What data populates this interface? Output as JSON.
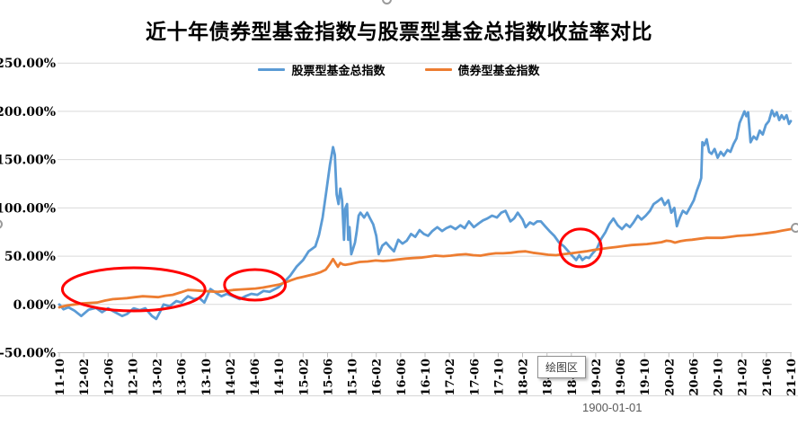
{
  "chart": {
    "title": "近十年债券型基金指数与股票型基金总指数收益率对比",
    "legend": [
      {
        "label": "股票型基金总指数",
        "color": "#5B9BD5"
      },
      {
        "label": "债券型基金指数",
        "color": "#ED7D31"
      }
    ]
  },
  "tooltip": {
    "text": "绘图区"
  },
  "note": {
    "text": "1900-01-01"
  },
  "colors": {
    "stock_line": "#5B9BD5",
    "bond_line": "#ED7D31",
    "annotation": "#FF0000",
    "gridline": "#D9D9D9",
    "axis": "#BFBFBF"
  },
  "chart_data": {
    "type": "line",
    "title": "近十年债券型基金指数与股票型基金总指数收益率对比",
    "xlabel": "",
    "ylabel": "",
    "ylim": [
      -50,
      250
    ],
    "y_step": 50,
    "grid": "horizontal",
    "legend_position": "top",
    "y_tick_labels": [
      "250.00%",
      "200.00%",
      "150.00%",
      "100.00%",
      "50.00%",
      "0.00%",
      "-50.00%"
    ],
    "x_tick_labels": [
      "11-10",
      "12-02",
      "12-06",
      "12-10",
      "13-02",
      "13-06",
      "13-10",
      "14-02",
      "14-06",
      "14-10",
      "15-02",
      "15-06",
      "15-10",
      "16-02",
      "16-06",
      "16-10",
      "17-02",
      "17-06",
      "17-10",
      "18-02",
      "18-06",
      "18-10",
      "19-02",
      "19-06",
      "19-10",
      "20-02",
      "20-06",
      "20-10",
      "21-02",
      "21-06",
      "21-10"
    ],
    "x_unit": "months since 2011-10",
    "series": [
      {
        "id": "stock",
        "name": "股票型基金总指数",
        "color": "#5B9BD5",
        "points": [
          [
            0,
            0
          ],
          [
            0.7,
            -5
          ],
          [
            1.5,
            -3
          ],
          [
            2.5,
            -6.5
          ],
          [
            3.6,
            -12
          ],
          [
            4.8,
            -5.5
          ],
          [
            6,
            -3.5
          ],
          [
            7,
            -8
          ],
          [
            8,
            -4
          ],
          [
            9,
            -7.5
          ],
          [
            10.3,
            -12
          ],
          [
            11.1,
            -10
          ],
          [
            12.2,
            -4
          ],
          [
            13.2,
            -6
          ],
          [
            14.1,
            -4
          ],
          [
            15.2,
            -12
          ],
          [
            15.9,
            -15
          ],
          [
            16.5,
            -8
          ],
          [
            17.1,
            0
          ],
          [
            18.1,
            -2
          ],
          [
            19.2,
            3.5
          ],
          [
            20,
            2
          ],
          [
            21.1,
            8.5
          ],
          [
            22.1,
            5.5
          ],
          [
            23,
            6.5
          ],
          [
            23.8,
            2
          ],
          [
            24.8,
            16
          ],
          [
            25.7,
            12
          ],
          [
            26.6,
            8.5
          ],
          [
            27.5,
            11
          ],
          [
            28.5,
            8.5
          ],
          [
            29.6,
            5.5
          ],
          [
            30.5,
            8.5
          ],
          [
            31.5,
            11
          ],
          [
            32.5,
            10
          ],
          [
            33.5,
            14
          ],
          [
            34.5,
            13
          ],
          [
            36,
            18
          ],
          [
            37,
            24
          ],
          [
            37.9,
            30
          ],
          [
            38.9,
            39
          ],
          [
            40,
            46
          ],
          [
            40.9,
            55
          ],
          [
            42,
            60
          ],
          [
            42.6,
            72
          ],
          [
            43.2,
            90
          ],
          [
            43.8,
            117
          ],
          [
            44.4,
            145
          ],
          [
            44.9,
            163
          ],
          [
            45.2,
            155
          ],
          [
            45.5,
            114
          ],
          [
            45.8,
            104
          ],
          [
            46.1,
            120
          ],
          [
            46.4,
            108
          ],
          [
            46.7,
            67
          ],
          [
            46.9,
            99
          ],
          [
            47.2,
            104
          ],
          [
            47.4,
            67
          ],
          [
            47.6,
            80
          ],
          [
            47.9,
            52
          ],
          [
            48.2,
            58
          ],
          [
            48.5,
            64
          ],
          [
            48.8,
            76
          ],
          [
            49.1,
            92
          ],
          [
            49.4,
            95
          ],
          [
            50,
            90
          ],
          [
            50.5,
            95
          ],
          [
            51,
            89
          ],
          [
            51.5,
            83
          ],
          [
            52,
            71
          ],
          [
            52.4,
            52
          ],
          [
            53,
            61
          ],
          [
            53.6,
            64
          ],
          [
            54.3,
            59
          ],
          [
            54.9,
            55
          ],
          [
            55.6,
            67
          ],
          [
            56.3,
            63
          ],
          [
            57,
            66
          ],
          [
            57.7,
            73
          ],
          [
            58.4,
            70
          ],
          [
            59.1,
            77
          ],
          [
            59.8,
            73
          ],
          [
            60.5,
            71
          ],
          [
            61.2,
            76
          ],
          [
            62,
            80
          ],
          [
            62.8,
            76
          ],
          [
            63.5,
            79
          ],
          [
            64.2,
            81
          ],
          [
            65,
            78
          ],
          [
            65.8,
            82
          ],
          [
            66.5,
            79
          ],
          [
            67.2,
            86
          ],
          [
            68,
            80
          ],
          [
            68.8,
            84
          ],
          [
            69.5,
            87
          ],
          [
            70.2,
            89
          ],
          [
            71,
            92
          ],
          [
            71.8,
            90
          ],
          [
            72.5,
            95
          ],
          [
            73.2,
            97
          ],
          [
            74,
            86
          ],
          [
            74.6,
            89
          ],
          [
            75.2,
            95
          ],
          [
            76,
            88
          ],
          [
            76.5,
            80
          ],
          [
            77.2,
            85
          ],
          [
            77.8,
            83
          ],
          [
            78.4,
            86
          ],
          [
            79,
            86
          ],
          [
            79.7,
            81
          ],
          [
            80.4,
            76
          ],
          [
            81.2,
            71
          ],
          [
            82,
            64
          ],
          [
            82.8,
            60
          ],
          [
            83.5,
            55
          ],
          [
            84.2,
            50
          ],
          [
            84.8,
            46
          ],
          [
            85.3,
            51
          ],
          [
            85.8,
            46
          ],
          [
            86.4,
            49
          ],
          [
            86.9,
            48
          ],
          [
            87.5,
            53
          ],
          [
            88.2,
            58
          ],
          [
            88.9,
            68
          ],
          [
            89.6,
            75
          ],
          [
            90.2,
            83
          ],
          [
            90.9,
            89
          ],
          [
            91.6,
            82
          ],
          [
            92.3,
            78
          ],
          [
            93,
            83
          ],
          [
            93.6,
            80
          ],
          [
            94.2,
            85
          ],
          [
            94.9,
            92
          ],
          [
            95.5,
            88
          ],
          [
            96.2,
            92
          ],
          [
            96.9,
            97
          ],
          [
            97.5,
            104
          ],
          [
            98.2,
            107
          ],
          [
            98.8,
            110
          ],
          [
            99.3,
            103
          ],
          [
            99.9,
            108
          ],
          [
            100.4,
            95
          ],
          [
            100.9,
            100
          ],
          [
            101.3,
            81
          ],
          [
            101.8,
            90
          ],
          [
            102.3,
            97
          ],
          [
            102.9,
            94
          ],
          [
            103.5,
            101
          ],
          [
            104.1,
            108
          ],
          [
            104.6,
            118
          ],
          [
            105,
            125
          ],
          [
            105.3,
            131
          ],
          [
            105.5,
            168
          ],
          [
            105.8,
            165
          ],
          [
            106.2,
            171
          ],
          [
            106.6,
            158
          ],
          [
            107,
            156
          ],
          [
            107.5,
            161
          ],
          [
            108,
            152
          ],
          [
            108.5,
            158
          ],
          [
            109,
            154
          ],
          [
            109.6,
            160
          ],
          [
            110.1,
            158
          ],
          [
            110.6,
            166
          ],
          [
            111.1,
            172
          ],
          [
            111.6,
            188
          ],
          [
            112,
            194
          ],
          [
            112.4,
            200
          ],
          [
            112.7,
            195
          ],
          [
            113,
            199
          ],
          [
            113.4,
            168
          ],
          [
            113.9,
            174
          ],
          [
            114.4,
            171
          ],
          [
            114.9,
            180
          ],
          [
            115.4,
            176
          ],
          [
            115.9,
            186
          ],
          [
            116.4,
            190
          ],
          [
            116.9,
            201
          ],
          [
            117.3,
            195
          ],
          [
            117.7,
            199
          ],
          [
            118.1,
            191
          ],
          [
            118.5,
            196
          ],
          [
            118.9,
            192
          ],
          [
            119.3,
            196
          ],
          [
            119.7,
            187
          ],
          [
            120,
            190
          ]
        ]
      },
      {
        "id": "bond",
        "name": "债券型基金指数",
        "color": "#ED7D31",
        "points": [
          [
            0,
            -3
          ],
          [
            1.3,
            -1
          ],
          [
            2.5,
            0
          ],
          [
            3.7,
            1
          ],
          [
            5,
            1.5
          ],
          [
            6.2,
            2
          ],
          [
            7.5,
            4
          ],
          [
            8.8,
            5.5
          ],
          [
            10,
            6
          ],
          [
            11.1,
            6.5
          ],
          [
            12.4,
            7.5
          ],
          [
            13.7,
            8.5
          ],
          [
            15,
            8
          ],
          [
            16.2,
            7.5
          ],
          [
            17.4,
            9
          ],
          [
            18.6,
            10
          ],
          [
            19.9,
            12.5
          ],
          [
            21.1,
            15
          ],
          [
            22.4,
            14.5
          ],
          [
            23.6,
            14
          ],
          [
            24.8,
            13.5
          ],
          [
            26,
            13
          ],
          [
            27.3,
            14
          ],
          [
            28.5,
            15
          ],
          [
            29.8,
            15.5
          ],
          [
            31,
            16
          ],
          [
            32.2,
            16.5
          ],
          [
            33.4,
            17.5
          ],
          [
            34.7,
            19
          ],
          [
            36,
            20.5
          ],
          [
            37,
            22.5
          ],
          [
            38,
            25
          ],
          [
            38.9,
            27
          ],
          [
            39.9,
            28.5
          ],
          [
            40.9,
            30
          ],
          [
            41.9,
            31.5
          ],
          [
            42.9,
            33.5
          ],
          [
            43.7,
            36
          ],
          [
            44.3,
            41
          ],
          [
            44.7,
            45
          ],
          [
            44.9,
            47
          ],
          [
            45.3,
            43
          ],
          [
            45.7,
            39
          ],
          [
            46.1,
            43
          ],
          [
            46.5,
            41.5
          ],
          [
            46.9,
            41
          ],
          [
            47.8,
            42
          ],
          [
            48.5,
            43
          ],
          [
            49.3,
            44
          ],
          [
            50.6,
            44.5
          ],
          [
            51.9,
            45.5
          ],
          [
            53.1,
            45
          ],
          [
            54.3,
            45.5
          ],
          [
            55.5,
            46.5
          ],
          [
            56.8,
            47.5
          ],
          [
            58,
            48
          ],
          [
            59.3,
            48.5
          ],
          [
            60.5,
            49.5
          ],
          [
            61.7,
            50.5
          ],
          [
            63,
            50
          ],
          [
            64.2,
            50.5
          ],
          [
            65.4,
            51.5
          ],
          [
            66.7,
            52
          ],
          [
            67.9,
            51
          ],
          [
            69.1,
            50.5
          ],
          [
            70.4,
            52
          ],
          [
            71.6,
            53
          ],
          [
            72.8,
            53
          ],
          [
            74.1,
            53.5
          ],
          [
            75.3,
            54.5
          ],
          [
            76.5,
            55
          ],
          [
            77.7,
            53.5
          ],
          [
            79,
            52.5
          ],
          [
            80.2,
            51.5
          ],
          [
            81.5,
            51
          ],
          [
            82.7,
            52
          ],
          [
            84,
            53
          ],
          [
            85.2,
            54
          ],
          [
            86.4,
            55
          ],
          [
            87.7,
            56.5
          ],
          [
            88.9,
            57.5
          ],
          [
            90.1,
            58.5
          ],
          [
            91.4,
            59.5
          ],
          [
            92.6,
            60.5
          ],
          [
            93.9,
            61.5
          ],
          [
            95.1,
            62
          ],
          [
            96.4,
            62.5
          ],
          [
            97.6,
            63.5
          ],
          [
            98.8,
            64.5
          ],
          [
            99.6,
            66
          ],
          [
            100.3,
            65.5
          ],
          [
            101,
            64
          ],
          [
            101.9,
            65.5
          ],
          [
            102.8,
            66.5
          ],
          [
            103.8,
            67
          ],
          [
            105,
            68
          ],
          [
            106.2,
            69
          ],
          [
            107.5,
            69
          ],
          [
            108.7,
            69
          ],
          [
            110,
            70
          ],
          [
            111.2,
            71
          ],
          [
            112.4,
            71.5
          ],
          [
            113.7,
            72
          ],
          [
            114.9,
            73
          ],
          [
            116.2,
            74
          ],
          [
            117.4,
            75
          ],
          [
            118.6,
            76.5
          ],
          [
            120,
            78
          ]
        ]
      }
    ],
    "annotations": {
      "ellipses": [
        {
          "cx_month": 12.2,
          "cy_value": 15.6,
          "rx_months": 11.7,
          "ry_value": 22.3,
          "color": "#FF0000"
        },
        {
          "cx_month": 32.1,
          "cy_value": 20.3,
          "rx_months": 5.0,
          "ry_value": 15.8,
          "color": "#FF0000"
        },
        {
          "cx_month": 85.5,
          "cy_value": 58.5,
          "rx_months": 3.4,
          "ry_value": 19.5,
          "color": "#FF0000"
        }
      ]
    }
  }
}
